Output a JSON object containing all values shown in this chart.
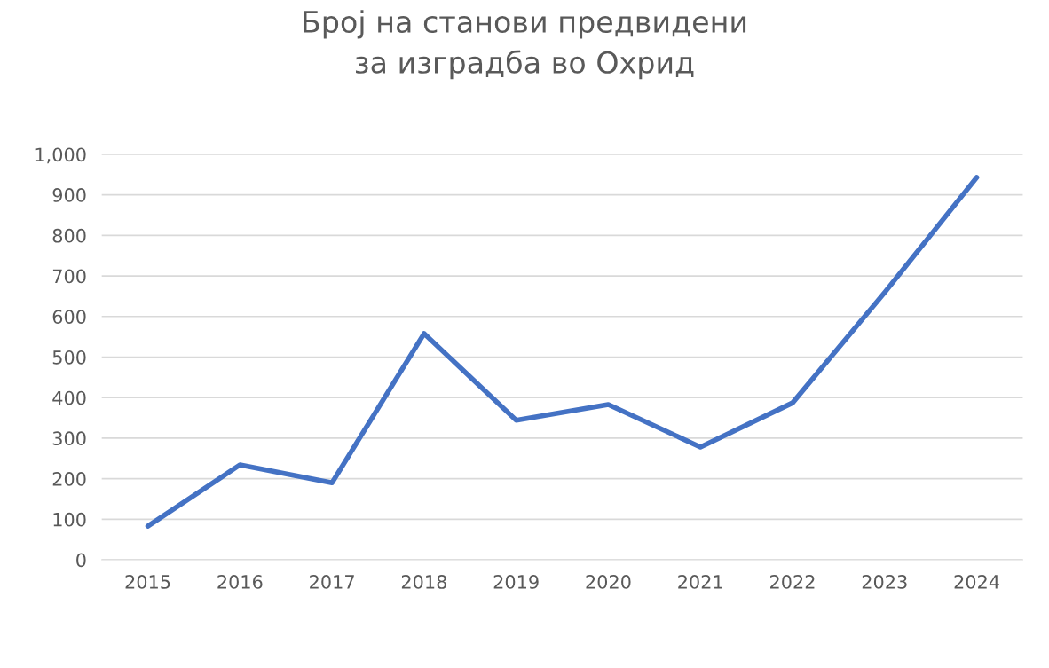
{
  "chart_data": {
    "type": "line",
    "title": "Број на станови предвидени\nза изградба во Охрид",
    "categories": [
      "2015",
      "2016",
      "2017",
      "2018",
      "2019",
      "2020",
      "2021",
      "2022",
      "2023",
      "2024"
    ],
    "series": [
      {
        "color": "#4472c4",
        "values": [
          83,
          234,
          190,
          558,
          344,
          383,
          278,
          387,
          659,
          943
        ]
      }
    ],
    "ylim": [
      0,
      1000
    ],
    "yticks": [
      0,
      100,
      200,
      300,
      400,
      500,
      600,
      700,
      800,
      900,
      {
        "value": 1000,
        "label": "1,000"
      }
    ],
    "grid": "y",
    "marker": "none",
    "line_style": "solid"
  }
}
